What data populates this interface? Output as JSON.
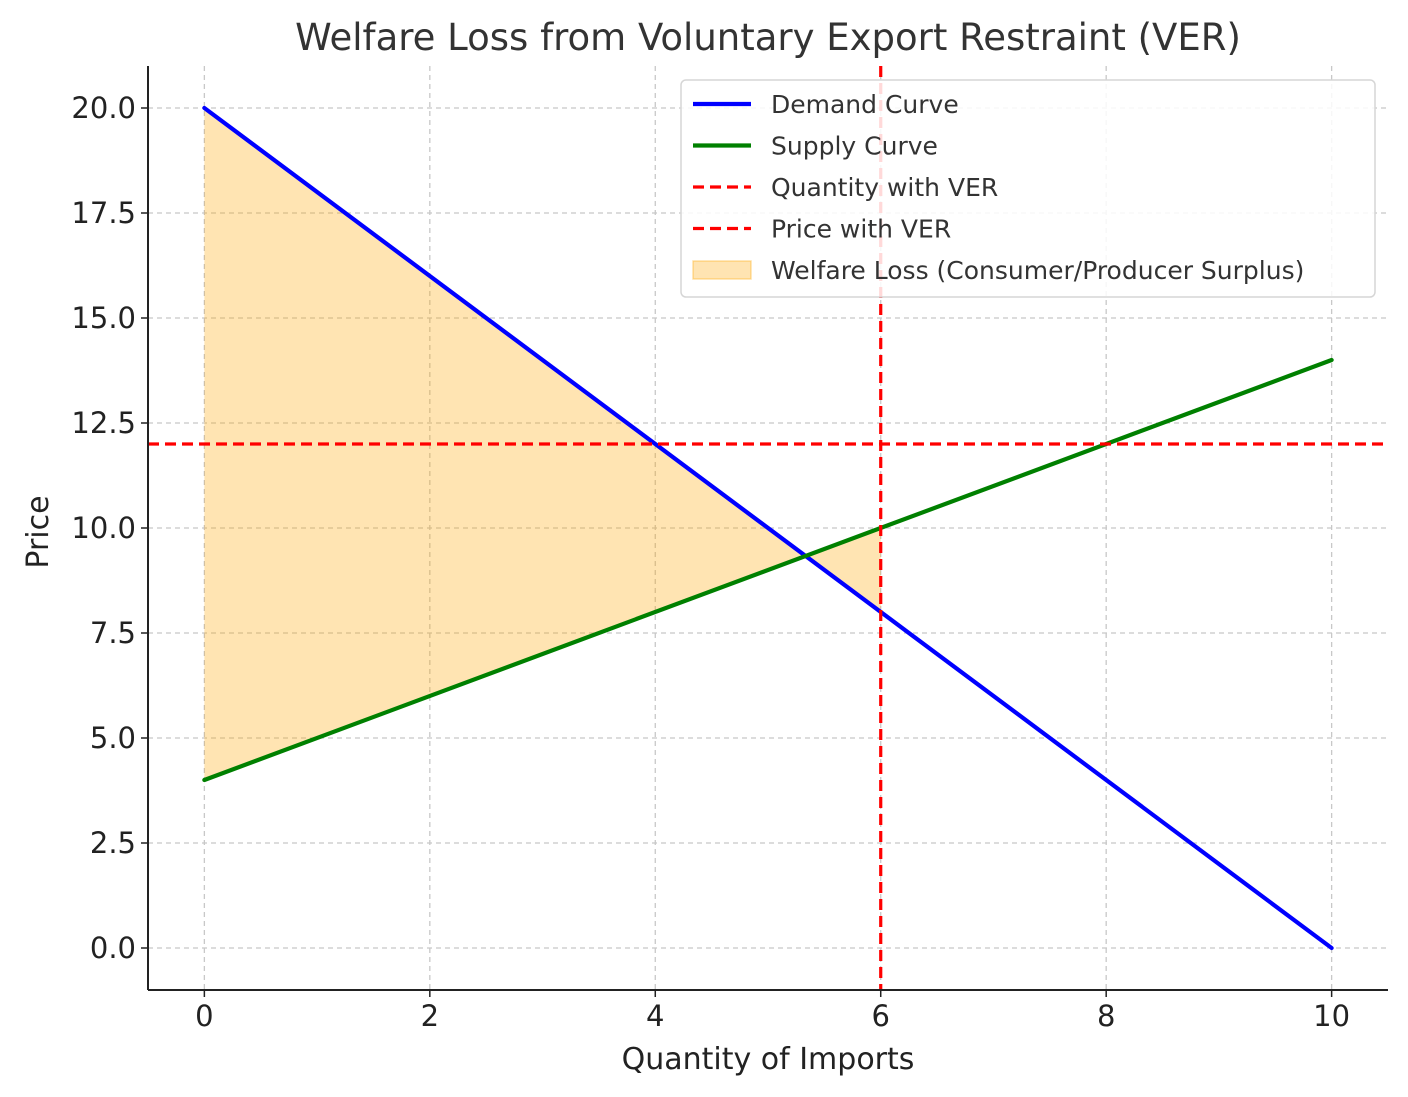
{
  "chart_data": {
    "type": "line",
    "title": "Welfare Loss from Voluntary Export Restraint (VER)",
    "xlabel": "Quantity of Imports",
    "ylabel": "Price",
    "xlim": [
      -0.5,
      10.5
    ],
    "ylim": [
      -1,
      21
    ],
    "x_ticks": [
      0,
      2,
      4,
      6,
      8,
      10
    ],
    "x_tick_labels": [
      "0",
      "2",
      "4",
      "6",
      "8",
      "10"
    ],
    "y_ticks": [
      0,
      2.5,
      5,
      7.5,
      10,
      12.5,
      15,
      17.5,
      20
    ],
    "y_tick_labels": [
      "0.0",
      "2.5",
      "5.0",
      "7.5",
      "10.0",
      "12.5",
      "15.0",
      "17.5",
      "20.0"
    ],
    "grid": true,
    "legend_position": "top-right",
    "series": [
      {
        "name": "Demand Curve",
        "kind": "line",
        "color": "#0000ff",
        "x": [
          0,
          10
        ],
        "y": [
          20,
          0
        ]
      },
      {
        "name": "Supply Curve",
        "kind": "line",
        "color": "#008000",
        "x": [
          0,
          10
        ],
        "y": [
          4,
          14
        ]
      },
      {
        "name": "Quantity with VER",
        "kind": "vline",
        "color": "#ff0000",
        "style": "dashed",
        "x": 6
      },
      {
        "name": "Price with VER",
        "kind": "hline",
        "color": "#ff0000",
        "style": "dashed",
        "y": 12
      },
      {
        "name": "Welfare Loss (Consumer/Producer Surplus)",
        "kind": "fill_between",
        "color": "#ffa500",
        "x": [
          0,
          6
        ],
        "upper": "demand",
        "lower": "supply"
      }
    ]
  }
}
